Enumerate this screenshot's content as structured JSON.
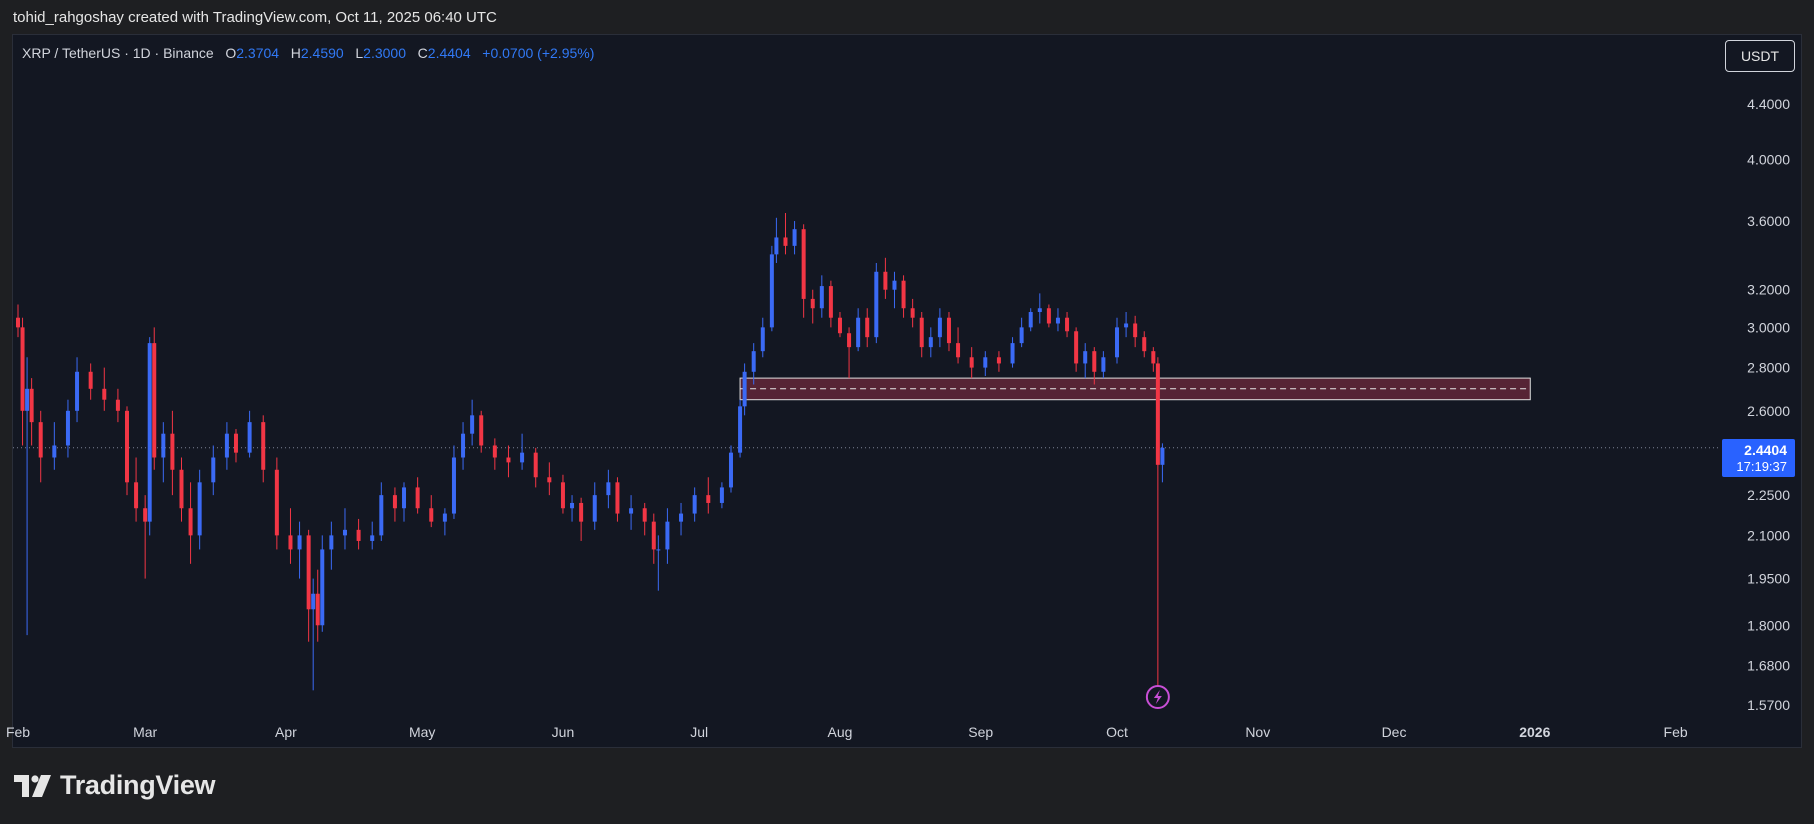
{
  "header": {
    "attribution": "tohid_rahgoshay created with TradingView.com, Oct 11, 2025 06:40 UTC"
  },
  "legend": {
    "symbol": "XRP / TetherUS · 1D · Binance",
    "o_label": "O",
    "o_value": "2.3704",
    "h_label": "H",
    "h_value": "2.4590",
    "l_label": "L",
    "l_value": "2.3000",
    "c_label": "C",
    "c_value": "2.4404",
    "change": "+0.0700 (+2.95%)"
  },
  "unit_button": "USDT",
  "last_price": {
    "price": "2.4404",
    "countdown": "17:19:37"
  },
  "brand": {
    "name": "TradingView"
  },
  "colors": {
    "up": "#3b6af5",
    "down": "#f23645",
    "zone": "#6e2a3c",
    "price_tag": "#2962ff",
    "background": "#131722"
  },
  "icons": {
    "logo": "tradingview-logo-icon",
    "event": "lightning-icon"
  },
  "chart_data": {
    "type": "candlestick",
    "symbol": "XRP / TetherUS",
    "interval": "1D",
    "exchange": "Binance",
    "y_scale": "log",
    "ylim": [
      1.54,
      4.7
    ],
    "y_ticks": [
      "4.4000",
      "4.0000",
      "3.6000",
      "3.2000",
      "3.0000",
      "2.8000",
      "2.6000",
      "2.4404",
      "2.2500",
      "2.1000",
      "1.9500",
      "1.8000",
      "1.6800",
      "1.5700"
    ],
    "x_ticks": [
      "Feb",
      "Mar",
      "Apr",
      "May",
      "Jun",
      "Jul",
      "Aug",
      "Sep",
      "Oct",
      "Nov",
      "Dec",
      "2026",
      "Feb"
    ],
    "x_range": [
      "2025-01-31",
      "2026-02-28"
    ],
    "last_close": 2.4404,
    "zone": {
      "from": "2025-07-10",
      "to": "2025-12-31",
      "low": 2.65,
      "high": 2.75,
      "mid": 2.7
    },
    "event_marker": {
      "date": "2025-10-10",
      "icon": "lightning-icon"
    },
    "candles": [
      {
        "date": "2025-02-01",
        "o": 3.05,
        "h": 3.12,
        "l": 2.95,
        "c": 3.0
      },
      {
        "date": "2025-02-02",
        "o": 3.0,
        "h": 3.05,
        "l": 2.45,
        "c": 2.6
      },
      {
        "date": "2025-02-03",
        "o": 2.6,
        "h": 2.85,
        "l": 1.77,
        "c": 2.7
      },
      {
        "date": "2025-02-04",
        "o": 2.7,
        "h": 2.75,
        "l": 2.45,
        "c": 2.55
      },
      {
        "date": "2025-02-06",
        "o": 2.55,
        "h": 2.6,
        "l": 2.3,
        "c": 2.4
      },
      {
        "date": "2025-02-09",
        "o": 2.4,
        "h": 2.55,
        "l": 2.35,
        "c": 2.45
      },
      {
        "date": "2025-02-12",
        "o": 2.45,
        "h": 2.65,
        "l": 2.4,
        "c": 2.6
      },
      {
        "date": "2025-02-14",
        "o": 2.6,
        "h": 2.85,
        "l": 2.55,
        "c": 2.78
      },
      {
        "date": "2025-02-17",
        "o": 2.78,
        "h": 2.82,
        "l": 2.65,
        "c": 2.7
      },
      {
        "date": "2025-02-20",
        "o": 2.7,
        "h": 2.8,
        "l": 2.6,
        "c": 2.65
      },
      {
        "date": "2025-02-23",
        "o": 2.65,
        "h": 2.7,
        "l": 2.55,
        "c": 2.6
      },
      {
        "date": "2025-02-25",
        "o": 2.6,
        "h": 2.62,
        "l": 2.25,
        "c": 2.3
      },
      {
        "date": "2025-02-27",
        "o": 2.3,
        "h": 2.4,
        "l": 2.15,
        "c": 2.2
      },
      {
        "date": "2025-03-01",
        "o": 2.2,
        "h": 2.25,
        "l": 1.95,
        "c": 2.15
      },
      {
        "date": "2025-03-02",
        "o": 2.15,
        "h": 2.95,
        "l": 2.1,
        "c": 2.92
      },
      {
        "date": "2025-03-03",
        "o": 2.92,
        "h": 3.0,
        "l": 2.35,
        "c": 2.4
      },
      {
        "date": "2025-03-05",
        "o": 2.4,
        "h": 2.55,
        "l": 2.3,
        "c": 2.5
      },
      {
        "date": "2025-03-07",
        "o": 2.5,
        "h": 2.6,
        "l": 2.25,
        "c": 2.35
      },
      {
        "date": "2025-03-09",
        "o": 2.35,
        "h": 2.4,
        "l": 2.15,
        "c": 2.2
      },
      {
        "date": "2025-03-11",
        "o": 2.2,
        "h": 2.3,
        "l": 2.0,
        "c": 2.1
      },
      {
        "date": "2025-03-13",
        "o": 2.1,
        "h": 2.35,
        "l": 2.05,
        "c": 2.3
      },
      {
        "date": "2025-03-16",
        "o": 2.3,
        "h": 2.45,
        "l": 2.25,
        "c": 2.4
      },
      {
        "date": "2025-03-19",
        "o": 2.4,
        "h": 2.55,
        "l": 2.35,
        "c": 2.5
      },
      {
        "date": "2025-03-21",
        "o": 2.5,
        "h": 2.52,
        "l": 2.38,
        "c": 2.42
      },
      {
        "date": "2025-03-24",
        "o": 2.42,
        "h": 2.6,
        "l": 2.4,
        "c": 2.55
      },
      {
        "date": "2025-03-27",
        "o": 2.55,
        "h": 2.58,
        "l": 2.3,
        "c": 2.35
      },
      {
        "date": "2025-03-30",
        "o": 2.35,
        "h": 2.4,
        "l": 2.05,
        "c": 2.1
      },
      {
        "date": "2025-04-02",
        "o": 2.1,
        "h": 2.2,
        "l": 2.0,
        "c": 2.05
      },
      {
        "date": "2025-04-04",
        "o": 2.05,
        "h": 2.15,
        "l": 1.95,
        "c": 2.1
      },
      {
        "date": "2025-04-06",
        "o": 2.1,
        "h": 2.12,
        "l": 1.75,
        "c": 1.85
      },
      {
        "date": "2025-04-07",
        "o": 1.85,
        "h": 1.95,
        "l": 1.61,
        "c": 1.9
      },
      {
        "date": "2025-04-08",
        "o": 1.9,
        "h": 1.98,
        "l": 1.75,
        "c": 1.8
      },
      {
        "date": "2025-04-09",
        "o": 1.8,
        "h": 2.1,
        "l": 1.78,
        "c": 2.05
      },
      {
        "date": "2025-04-11",
        "o": 2.05,
        "h": 2.15,
        "l": 1.98,
        "c": 2.1
      },
      {
        "date": "2025-04-14",
        "o": 2.1,
        "h": 2.2,
        "l": 2.05,
        "c": 2.12
      },
      {
        "date": "2025-04-17",
        "o": 2.12,
        "h": 2.16,
        "l": 2.05,
        "c": 2.08
      },
      {
        "date": "2025-04-20",
        "o": 2.08,
        "h": 2.15,
        "l": 2.05,
        "c": 2.1
      },
      {
        "date": "2025-04-22",
        "o": 2.1,
        "h": 2.3,
        "l": 2.08,
        "c": 2.25
      },
      {
        "date": "2025-04-25",
        "o": 2.25,
        "h": 2.28,
        "l": 2.15,
        "c": 2.2
      },
      {
        "date": "2025-04-27",
        "o": 2.2,
        "h": 2.3,
        "l": 2.15,
        "c": 2.28
      },
      {
        "date": "2025-04-30",
        "o": 2.28,
        "h": 2.32,
        "l": 2.18,
        "c": 2.2
      },
      {
        "date": "2025-05-03",
        "o": 2.2,
        "h": 2.25,
        "l": 2.13,
        "c": 2.15
      },
      {
        "date": "2025-05-06",
        "o": 2.15,
        "h": 2.2,
        "l": 2.1,
        "c": 2.18
      },
      {
        "date": "2025-05-08",
        "o": 2.18,
        "h": 2.45,
        "l": 2.16,
        "c": 2.4
      },
      {
        "date": "2025-05-10",
        "o": 2.4,
        "h": 2.55,
        "l": 2.35,
        "c": 2.5
      },
      {
        "date": "2025-05-12",
        "o": 2.5,
        "h": 2.65,
        "l": 2.45,
        "c": 2.58
      },
      {
        "date": "2025-05-14",
        "o": 2.58,
        "h": 2.6,
        "l": 2.42,
        "c": 2.45
      },
      {
        "date": "2025-05-17",
        "o": 2.45,
        "h": 2.48,
        "l": 2.35,
        "c": 2.4
      },
      {
        "date": "2025-05-20",
        "o": 2.4,
        "h": 2.45,
        "l": 2.32,
        "c": 2.38
      },
      {
        "date": "2025-05-23",
        "o": 2.38,
        "h": 2.5,
        "l": 2.35,
        "c": 2.42
      },
      {
        "date": "2025-05-26",
        "o": 2.42,
        "h": 2.44,
        "l": 2.28,
        "c": 2.32
      },
      {
        "date": "2025-05-29",
        "o": 2.32,
        "h": 2.38,
        "l": 2.25,
        "c": 2.3
      },
      {
        "date": "2025-06-01",
        "o": 2.3,
        "h": 2.33,
        "l": 2.18,
        "c": 2.2
      },
      {
        "date": "2025-06-03",
        "o": 2.2,
        "h": 2.25,
        "l": 2.15,
        "c": 2.22
      },
      {
        "date": "2025-06-05",
        "o": 2.22,
        "h": 2.24,
        "l": 2.08,
        "c": 2.15
      },
      {
        "date": "2025-06-08",
        "o": 2.15,
        "h": 2.3,
        "l": 2.12,
        "c": 2.25
      },
      {
        "date": "2025-06-11",
        "o": 2.25,
        "h": 2.35,
        "l": 2.2,
        "c": 2.3
      },
      {
        "date": "2025-06-13",
        "o": 2.3,
        "h": 2.32,
        "l": 2.15,
        "c": 2.18
      },
      {
        "date": "2025-06-16",
        "o": 2.18,
        "h": 2.25,
        "l": 2.12,
        "c": 2.2
      },
      {
        "date": "2025-06-19",
        "o": 2.2,
        "h": 2.22,
        "l": 2.1,
        "c": 2.15
      },
      {
        "date": "2025-06-21",
        "o": 2.15,
        "h": 2.18,
        "l": 2.0,
        "c": 2.05
      },
      {
        "date": "2025-06-22",
        "o": 2.05,
        "h": 2.1,
        "l": 1.91,
        "c": 2.05
      },
      {
        "date": "2025-06-24",
        "o": 2.05,
        "h": 2.2,
        "l": 2.0,
        "c": 2.15
      },
      {
        "date": "2025-06-27",
        "o": 2.15,
        "h": 2.22,
        "l": 2.1,
        "c": 2.18
      },
      {
        "date": "2025-06-30",
        "o": 2.18,
        "h": 2.28,
        "l": 2.15,
        "c": 2.25
      },
      {
        "date": "2025-07-03",
        "o": 2.25,
        "h": 2.32,
        "l": 2.18,
        "c": 2.22
      },
      {
        "date": "2025-07-06",
        "o": 2.22,
        "h": 2.3,
        "l": 2.2,
        "c": 2.28
      },
      {
        "date": "2025-07-08",
        "o": 2.28,
        "h": 2.45,
        "l": 2.26,
        "c": 2.42
      },
      {
        "date": "2025-07-10",
        "o": 2.42,
        "h": 2.65,
        "l": 2.4,
        "c": 2.62
      },
      {
        "date": "2025-07-11",
        "o": 2.62,
        "h": 2.82,
        "l": 2.58,
        "c": 2.78
      },
      {
        "date": "2025-07-13",
        "o": 2.78,
        "h": 2.92,
        "l": 2.72,
        "c": 2.88
      },
      {
        "date": "2025-07-15",
        "o": 2.88,
        "h": 3.05,
        "l": 2.85,
        "c": 3.0
      },
      {
        "date": "2025-07-17",
        "o": 3.0,
        "h": 3.45,
        "l": 2.98,
        "c": 3.4
      },
      {
        "date": "2025-07-18",
        "o": 3.4,
        "h": 3.62,
        "l": 3.35,
        "c": 3.5
      },
      {
        "date": "2025-07-20",
        "o": 3.5,
        "h": 3.65,
        "l": 3.4,
        "c": 3.45
      },
      {
        "date": "2025-07-22",
        "o": 3.45,
        "h": 3.6,
        "l": 3.4,
        "c": 3.55
      },
      {
        "date": "2025-07-24",
        "o": 3.55,
        "h": 3.58,
        "l": 3.05,
        "c": 3.15
      },
      {
        "date": "2025-07-26",
        "o": 3.15,
        "h": 3.2,
        "l": 3.02,
        "c": 3.1
      },
      {
        "date": "2025-07-28",
        "o": 3.1,
        "h": 3.28,
        "l": 3.05,
        "c": 3.22
      },
      {
        "date": "2025-07-30",
        "o": 3.22,
        "h": 3.25,
        "l": 3.0,
        "c": 3.05
      },
      {
        "date": "2025-08-01",
        "o": 3.05,
        "h": 3.08,
        "l": 2.95,
        "c": 2.97
      },
      {
        "date": "2025-08-03",
        "o": 2.97,
        "h": 3.0,
        "l": 2.75,
        "c": 2.9
      },
      {
        "date": "2025-08-05",
        "o": 2.9,
        "h": 3.1,
        "l": 2.88,
        "c": 3.05
      },
      {
        "date": "2025-08-07",
        "o": 3.05,
        "h": 3.1,
        "l": 2.9,
        "c": 2.95
      },
      {
        "date": "2025-08-09",
        "o": 2.95,
        "h": 3.35,
        "l": 2.92,
        "c": 3.3
      },
      {
        "date": "2025-08-11",
        "o": 3.3,
        "h": 3.38,
        "l": 3.15,
        "c": 3.2
      },
      {
        "date": "2025-08-13",
        "o": 3.2,
        "h": 3.3,
        "l": 3.1,
        "c": 3.25
      },
      {
        "date": "2025-08-15",
        "o": 3.25,
        "h": 3.28,
        "l": 3.05,
        "c": 3.1
      },
      {
        "date": "2025-08-17",
        "o": 3.1,
        "h": 3.15,
        "l": 3.0,
        "c": 3.05
      },
      {
        "date": "2025-08-19",
        "o": 3.05,
        "h": 3.08,
        "l": 2.85,
        "c": 2.9
      },
      {
        "date": "2025-08-21",
        "o": 2.9,
        "h": 3.0,
        "l": 2.85,
        "c": 2.95
      },
      {
        "date": "2025-08-23",
        "o": 2.95,
        "h": 3.1,
        "l": 2.9,
        "c": 3.05
      },
      {
        "date": "2025-08-25",
        "o": 3.05,
        "h": 3.08,
        "l": 2.88,
        "c": 2.92
      },
      {
        "date": "2025-08-27",
        "o": 2.92,
        "h": 3.0,
        "l": 2.82,
        "c": 2.85
      },
      {
        "date": "2025-08-30",
        "o": 2.85,
        "h": 2.9,
        "l": 2.75,
        "c": 2.8
      },
      {
        "date": "2025-09-02",
        "o": 2.8,
        "h": 2.88,
        "l": 2.76,
        "c": 2.85
      },
      {
        "date": "2025-09-05",
        "o": 2.85,
        "h": 2.88,
        "l": 2.78,
        "c": 2.82
      },
      {
        "date": "2025-09-08",
        "o": 2.82,
        "h": 2.95,
        "l": 2.8,
        "c": 2.92
      },
      {
        "date": "2025-09-10",
        "o": 2.92,
        "h": 3.05,
        "l": 2.9,
        "c": 3.0
      },
      {
        "date": "2025-09-12",
        "o": 3.0,
        "h": 3.1,
        "l": 2.98,
        "c": 3.08
      },
      {
        "date": "2025-09-14",
        "o": 3.08,
        "h": 3.18,
        "l": 3.02,
        "c": 3.1
      },
      {
        "date": "2025-09-16",
        "o": 3.1,
        "h": 3.12,
        "l": 3.0,
        "c": 3.02
      },
      {
        "date": "2025-09-18",
        "o": 3.02,
        "h": 3.1,
        "l": 2.98,
        "c": 3.05
      },
      {
        "date": "2025-09-20",
        "o": 3.05,
        "h": 3.08,
        "l": 2.95,
        "c": 2.98
      },
      {
        "date": "2025-09-22",
        "o": 2.98,
        "h": 3.0,
        "l": 2.78,
        "c": 2.82
      },
      {
        "date": "2025-09-24",
        "o": 2.82,
        "h": 2.92,
        "l": 2.75,
        "c": 2.88
      },
      {
        "date": "2025-09-26",
        "o": 2.88,
        "h": 2.9,
        "l": 2.72,
        "c": 2.78
      },
      {
        "date": "2025-09-28",
        "o": 2.78,
        "h": 2.88,
        "l": 2.75,
        "c": 2.85
      },
      {
        "date": "2025-10-01",
        "o": 2.85,
        "h": 3.05,
        "l": 2.82,
        "c": 3.0
      },
      {
        "date": "2025-10-03",
        "o": 3.0,
        "h": 3.08,
        "l": 2.95,
        "c": 3.02
      },
      {
        "date": "2025-10-05",
        "o": 3.02,
        "h": 3.06,
        "l": 2.9,
        "c": 2.95
      },
      {
        "date": "2025-10-07",
        "o": 2.95,
        "h": 2.98,
        "l": 2.85,
        "c": 2.88
      },
      {
        "date": "2025-10-09",
        "o": 2.88,
        "h": 2.9,
        "l": 2.78,
        "c": 2.82
      },
      {
        "date": "2025-10-10",
        "o": 2.82,
        "h": 2.85,
        "l": 1.58,
        "c": 2.37
      },
      {
        "date": "2025-10-11",
        "o": 2.37,
        "h": 2.459,
        "l": 2.3,
        "c": 2.4404
      }
    ]
  }
}
